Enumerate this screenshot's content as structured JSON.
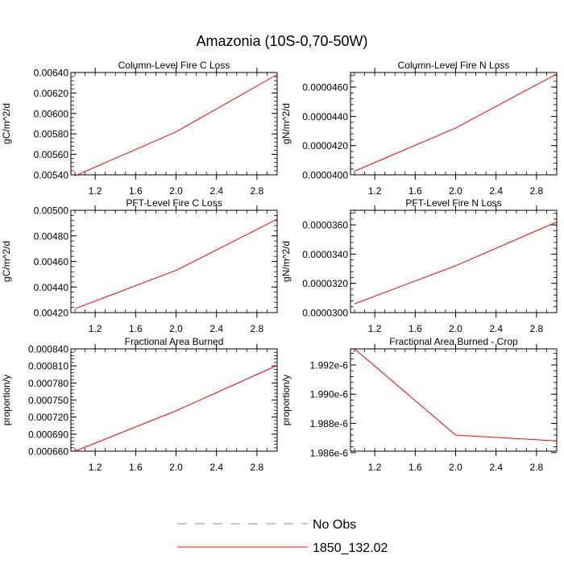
{
  "figure": {
    "title": "Amazonia (10S-0,70-50W)",
    "legend": [
      {
        "label": "No Obs",
        "style": "dashed",
        "color": "#8a8aa8"
      },
      {
        "label": "1850_132.02",
        "style": "solid",
        "color": "#ff0000"
      }
    ]
  },
  "chart_data": [
    {
      "type": "line",
      "title": "Column-Level Fire C Loss",
      "xlabel": "",
      "ylabel": "gC/m^2/d",
      "xlim": [
        0.96,
        3.0
      ],
      "ylim": [
        0.0054,
        0.0064
      ],
      "xticks": [
        1.2,
        1.6,
        2.0,
        2.4,
        2.8
      ],
      "xtick_labels": [
        "1.2",
        "1.6",
        "2.0",
        "2.4",
        "2.8"
      ],
      "xminor": 0.1,
      "yticks": [
        0.0054,
        0.0056,
        0.0058,
        0.006,
        0.0062,
        0.0064
      ],
      "ytick_labels": [
        "0.00540",
        "0.00560",
        "0.00580",
        "0.00600",
        "0.00620",
        "0.00640"
      ],
      "yminor": 4e-05,
      "series": [
        {
          "name": "1850_132.02",
          "color": "#ff0000",
          "x": [
            1,
            2,
            3
          ],
          "values": [
            0.00539,
            0.00582,
            0.00638
          ]
        }
      ]
    },
    {
      "type": "line",
      "title": "Column-Level Fire N Loss",
      "xlabel": "",
      "ylabel": "gN/m^2/d",
      "xlim": [
        0.96,
        3.0
      ],
      "ylim": [
        4e-05,
        4.7e-05
      ],
      "xticks": [
        1.2,
        1.6,
        2.0,
        2.4,
        2.8
      ],
      "xtick_labels": [
        "1.2",
        "1.6",
        "2.0",
        "2.4",
        "2.8"
      ],
      "xminor": 0.1,
      "yticks": [
        4e-05,
        4.2e-05,
        4.4e-05,
        4.6e-05
      ],
      "ytick_labels": [
        "0.0000400",
        "0.0000420",
        "0.0000440",
        "0.0000460"
      ],
      "yminor": 4e-07,
      "series": [
        {
          "name": "1850_132.02",
          "color": "#ff0000",
          "x": [
            1,
            2,
            3
          ],
          "values": [
            4.025e-05,
            4.32e-05,
            4.69e-05
          ]
        }
      ]
    },
    {
      "type": "line",
      "title": "PFT-Level Fire C Loss",
      "xlabel": "",
      "ylabel": "gC/m^2/d",
      "xlim": [
        0.96,
        3.0
      ],
      "ylim": [
        0.0042,
        0.005
      ],
      "xticks": [
        1.2,
        1.6,
        2.0,
        2.4,
        2.8
      ],
      "xtick_labels": [
        "1.2",
        "1.6",
        "2.0",
        "2.4",
        "2.8"
      ],
      "xminor": 0.1,
      "yticks": [
        0.0042,
        0.0044,
        0.0046,
        0.0048,
        0.005
      ],
      "ytick_labels": [
        "0.00420",
        "0.00440",
        "0.00460",
        "0.00480",
        "0.00500"
      ],
      "yminor": 4e-05,
      "series": [
        {
          "name": "1850_132.02",
          "color": "#ff0000",
          "x": [
            1,
            2,
            3
          ],
          "values": [
            0.00423,
            0.00453,
            0.00493
          ]
        }
      ]
    },
    {
      "type": "line",
      "title": "PFT-Level Fire N Loss",
      "xlabel": "",
      "ylabel": "gN/m^2/d",
      "xlim": [
        0.96,
        3.0
      ],
      "ylim": [
        3e-05,
        3.7e-05
      ],
      "xticks": [
        1.2,
        1.6,
        2.0,
        2.4,
        2.8
      ],
      "xtick_labels": [
        "1.2",
        "1.6",
        "2.0",
        "2.4",
        "2.8"
      ],
      "xminor": 0.1,
      "yticks": [
        3e-05,
        3.2e-05,
        3.4e-05,
        3.6e-05
      ],
      "ytick_labels": [
        "0.0000300",
        "0.0000320",
        "0.0000340",
        "0.0000360"
      ],
      "yminor": 4e-07,
      "series": [
        {
          "name": "1850_132.02",
          "color": "#ff0000",
          "x": [
            1,
            2,
            3
          ],
          "values": [
            3.06e-05,
            3.32e-05,
            3.62e-05
          ]
        }
      ]
    },
    {
      "type": "line",
      "title": "Fractional Area Burned",
      "xlabel": "",
      "ylabel": "proportion/y",
      "xlim": [
        0.96,
        3.0
      ],
      "ylim": [
        0.00066,
        0.00084
      ],
      "xticks": [
        1.2,
        1.6,
        2.0,
        2.4,
        2.8
      ],
      "xtick_labels": [
        "1.2",
        "1.6",
        "2.0",
        "2.4",
        "2.8"
      ],
      "xminor": 0.1,
      "yticks": [
        0.00066,
        0.00069,
        0.00072,
        0.00075,
        0.00078,
        0.00081,
        0.00084
      ],
      "ytick_labels": [
        "0.000660",
        "0.000690",
        "0.000720",
        "0.000750",
        "0.000780",
        "0.000810",
        "0.000840"
      ],
      "yminor": 6e-06,
      "series": [
        {
          "name": "1850_132.02",
          "color": "#ff0000",
          "x": [
            1,
            2,
            3
          ],
          "values": [
            0.00066,
            0.000731,
            0.000811
          ]
        }
      ]
    },
    {
      "type": "line",
      "title": "Fractional Area Burned - Crop",
      "xlabel": "",
      "ylabel": "proportion/y",
      "xlim": [
        0.96,
        3.0
      ],
      "ylim": [
        1.9861e-06,
        1.9931e-06
      ],
      "xticks": [
        1.2,
        1.6,
        2.0,
        2.4,
        2.8
      ],
      "xtick_labels": [
        "1.2",
        "1.6",
        "2.0",
        "2.4",
        "2.8"
      ],
      "xminor": 0.1,
      "yticks": [
        1.986e-06,
        1.988e-06,
        1.99e-06,
        1.992e-06
      ],
      "ytick_labels": [
        "1.986e-6",
        "1.988e-6",
        "1.990e-6",
        "1.992e-6"
      ],
      "yminor": 4e-10,
      "series": [
        {
          "name": "1850_132.02",
          "color": "#ff0000",
          "x": [
            1,
            2,
            3
          ],
          "values": [
            1.9931e-06,
            1.9872e-06,
            1.9868e-06
          ]
        }
      ]
    }
  ]
}
